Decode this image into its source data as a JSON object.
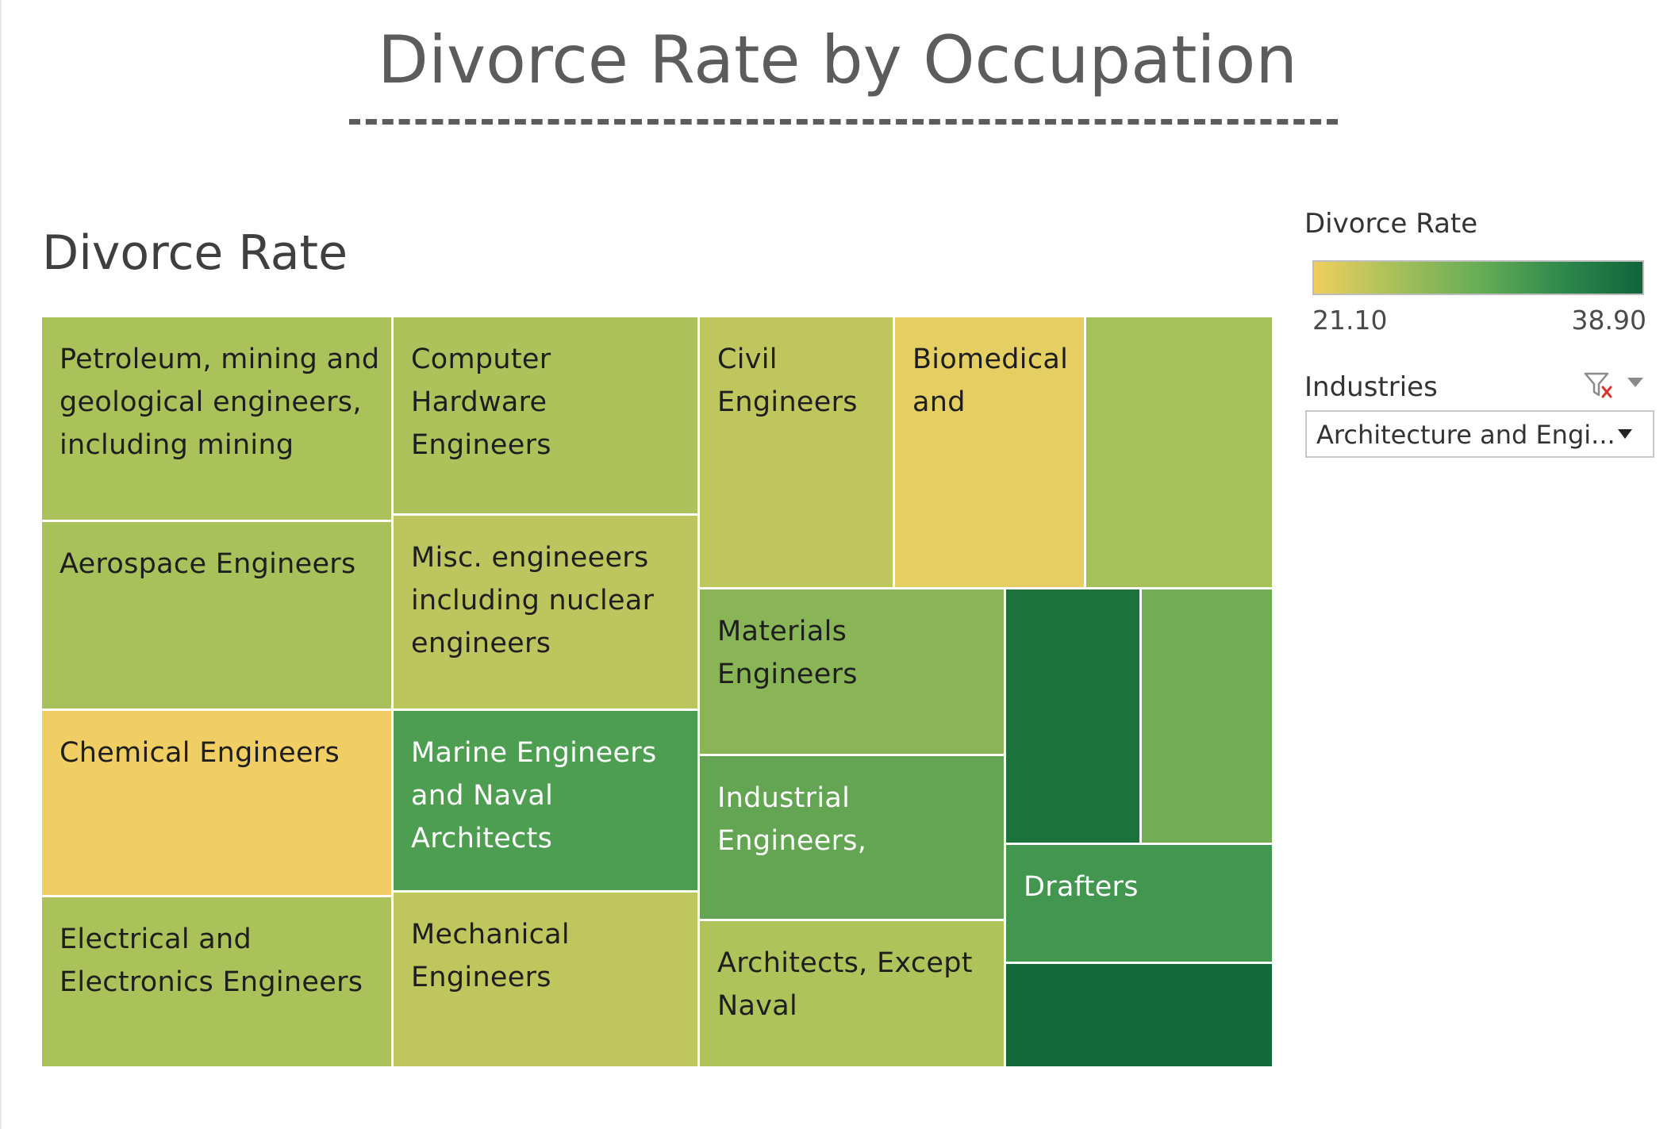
{
  "dashboard": {
    "title": "Divorce Rate by Occupation",
    "title_rule": "--------------------------------------------------------"
  },
  "sheet": {
    "title": "Divorce Rate"
  },
  "legend": {
    "title": "Divorce Rate",
    "min_label": "21.10",
    "max_label": "38.90",
    "min": 21.1,
    "max": 38.9,
    "colors": [
      "#efcf5d",
      "#a6c05a",
      "#68ad56",
      "#2f8a4c",
      "#10653a"
    ]
  },
  "filter": {
    "title": "Industries",
    "selected": "Architecture and Engi...",
    "clear_icon": "filter-clear-icon",
    "menu_icon": "chevron-down-icon"
  },
  "chart_data": {
    "type": "treemap",
    "title": "Divorce Rate",
    "color_measure": "Divorce Rate",
    "color_range": [
      21.1,
      38.9
    ],
    "filter": {
      "Industries": "Architecture and Engi..."
    },
    "tiles": [
      {
        "label": "Petroleum, mining and geological engineers, including mining",
        "color": "#abc25a"
      },
      {
        "label": "Aerospace Engineers",
        "color": "#a8c15a"
      },
      {
        "label": "Chemical Engineers",
        "color": "#f0ce63"
      },
      {
        "label": "Electrical and Electronics Engineers",
        "color": "#abc25a"
      },
      {
        "label": "Computer Hardware Engineers",
        "color": "#aec25b"
      },
      {
        "label": "Misc. engineeers including nuclear engineers",
        "color": "#bcc55e"
      },
      {
        "label": "Marine Engineers and Naval Architects",
        "color": "#4e9e52"
      },
      {
        "label": "Mechanical Engineers",
        "color": "#bfc65e"
      },
      {
        "label": "Civil Engineers",
        "color": "#c0c65e"
      },
      {
        "label": "Biomedical and",
        "color": "#e5cf63"
      },
      {
        "label": "",
        "color": "#a6c05a"
      },
      {
        "label": "Materials Engineers",
        "color": "#89b557"
      },
      {
        "label": "Industrial Engineers,",
        "color": "#63a553"
      },
      {
        "label": "Architects, Except Naval",
        "color": "#b0c35b"
      },
      {
        "label": "",
        "color": "#1b723b"
      },
      {
        "label": "",
        "color": "#70ad56"
      },
      {
        "label": "Drafters",
        "color": "#429650"
      },
      {
        "label": "",
        "color": "#13693a"
      }
    ]
  }
}
